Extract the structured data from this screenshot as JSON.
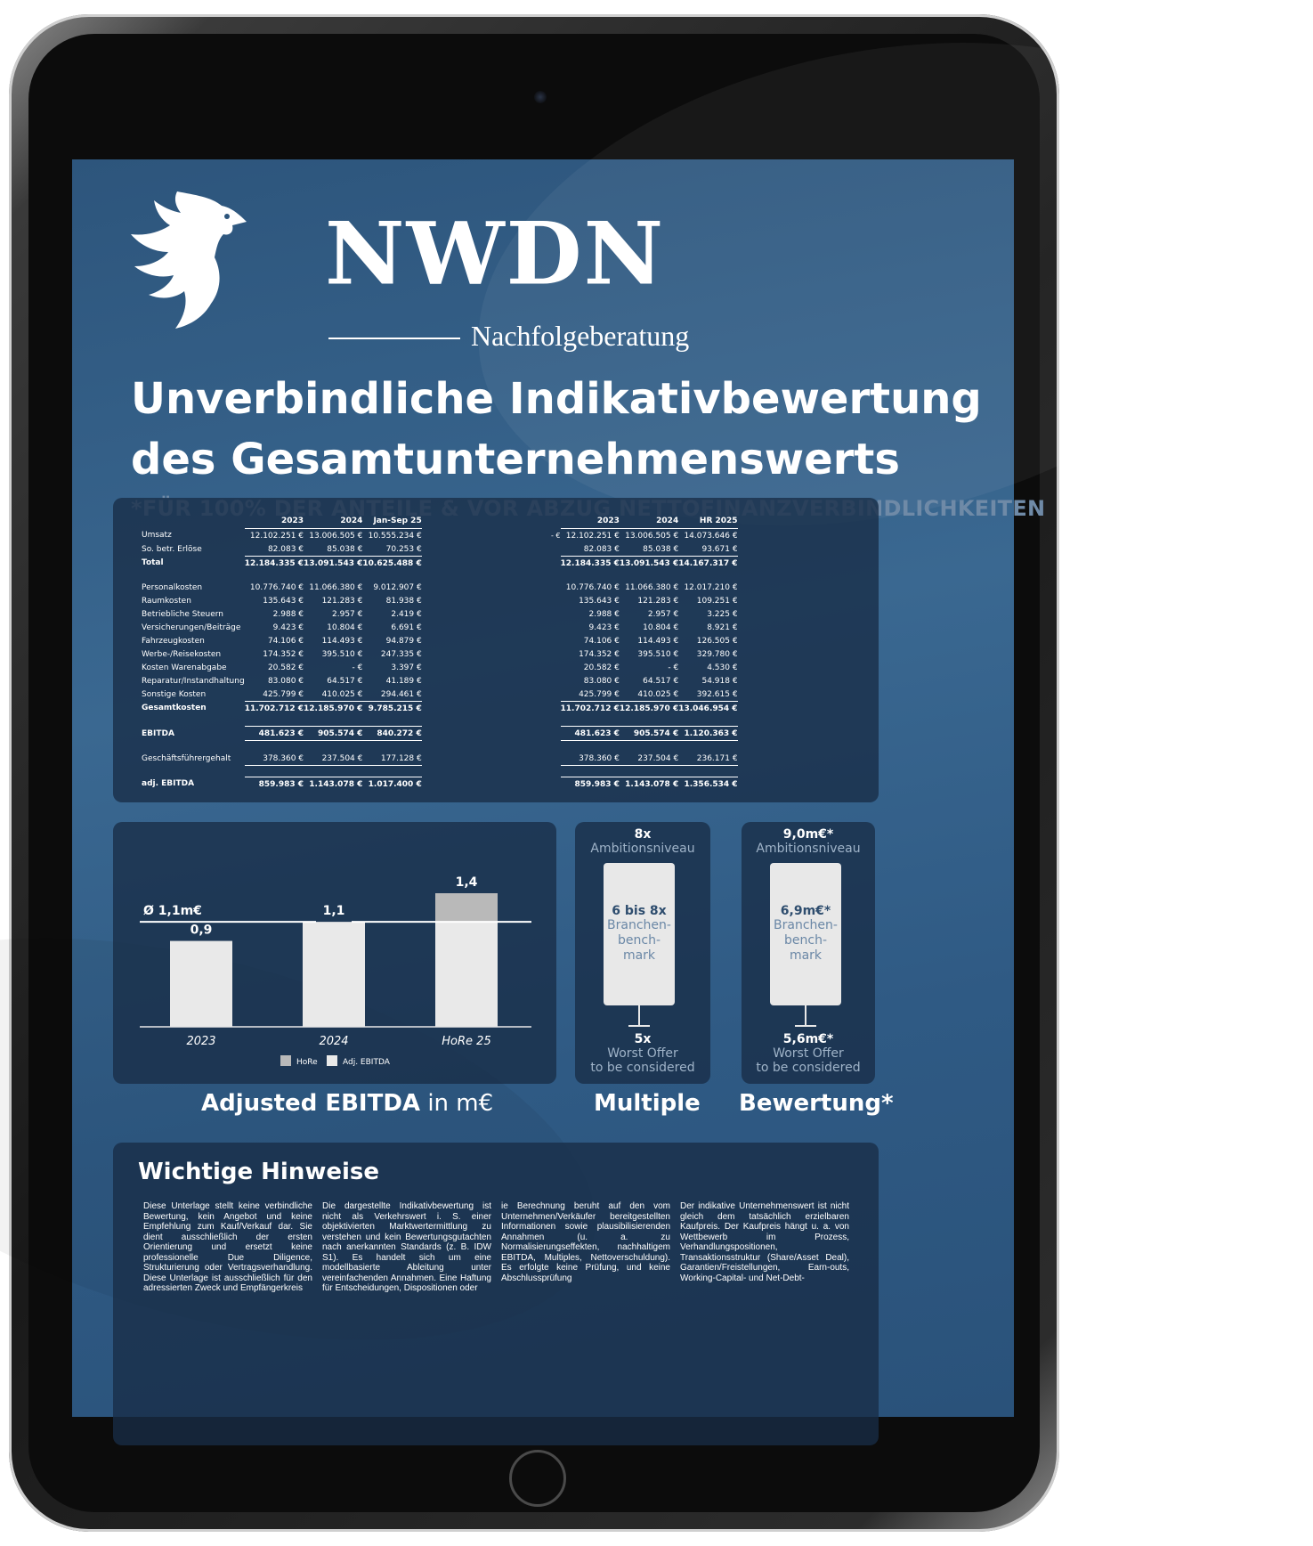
{
  "logo": {
    "brand": "NWDN",
    "sub": "Nachfolgeberatung"
  },
  "title": "Unverbindliche Indikativbewertung des Gesamtunternehmenswerts",
  "subtitle": "*FÜR 100% DER ANTEILE & VOR ABZUG NETTOFINANZVERBINDLICHKEITEN",
  "table_left": {
    "headers": [
      "2023",
      "2024",
      "Jan-Sep 25"
    ],
    "rows": [
      {
        "label": "Umsatz",
        "v": [
          "12.102.251 €",
          "13.006.505 €",
          "10.555.234 €"
        ]
      },
      {
        "label": "So. betr. Erlöse",
        "v": [
          "82.083 €",
          "85.038 €",
          "70.253 €"
        ]
      },
      {
        "label": "Total",
        "v": [
          "12.184.335 €",
          "13.091.543 €",
          "10.625.488 €"
        ]
      },
      {
        "label": "Personalkosten",
        "v": [
          "10.776.740 €",
          "11.066.380 €",
          "9.012.907 €"
        ]
      },
      {
        "label": "Raumkosten",
        "v": [
          "135.643 €",
          "121.283 €",
          "81.938 €"
        ]
      },
      {
        "label": "Betriebliche Steuern",
        "v": [
          "2.988 €",
          "2.957 €",
          "2.419 €"
        ]
      },
      {
        "label": "Versicherungen/Beiträge",
        "v": [
          "9.423 €",
          "10.804 €",
          "6.691 €"
        ]
      },
      {
        "label": "Fahrzeugkosten",
        "v": [
          "74.106 €",
          "114.493 €",
          "94.879 €"
        ]
      },
      {
        "label": "Werbe-/Reisekosten",
        "v": [
          "174.352 €",
          "395.510 €",
          "247.335 €"
        ]
      },
      {
        "label": "Kosten Warenabgabe",
        "v": [
          "20.582 €",
          "-   €",
          "3.397 €"
        ]
      },
      {
        "label": "Reparatur/Instandhaltung",
        "v": [
          "83.080 €",
          "64.517 €",
          "41.189 €"
        ]
      },
      {
        "label": "Sonstige Kosten",
        "v": [
          "425.799 €",
          "410.025 €",
          "294.461 €"
        ]
      },
      {
        "label": "Gesamtkosten",
        "v": [
          "11.702.712 €",
          "12.185.970 €",
          "9.785.215 €"
        ]
      },
      {
        "label": "EBITDA",
        "v": [
          "481.623 €",
          "905.574 €",
          "840.272 €"
        ]
      },
      {
        "label": "Geschäftsführergehalt",
        "v": [
          "378.360 €",
          "237.504 €",
          "177.128 €"
        ]
      },
      {
        "label": "adj. EBITDA",
        "v": [
          "859.983 €",
          "1.143.078 €",
          "1.017.400 €"
        ]
      }
    ]
  },
  "table_right": {
    "headers": [
      "2023",
      "2024",
      "HR 2025"
    ],
    "extra": "-   €",
    "rows": [
      [
        "12.102.251 €",
        "13.006.505 €",
        "14.073.646 €"
      ],
      [
        "82.083 €",
        "85.038 €",
        "93.671 €"
      ],
      [
        "12.184.335 €",
        "13.091.543 €",
        "14.167.317 €"
      ],
      [
        "10.776.740 €",
        "11.066.380 €",
        "12.017.210 €"
      ],
      [
        "135.643 €",
        "121.283 €",
        "109.251 €"
      ],
      [
        "2.988 €",
        "2.957 €",
        "3.225 €"
      ],
      [
        "9.423 €",
        "10.804 €",
        "8.921 €"
      ],
      [
        "74.106 €",
        "114.493 €",
        "126.505 €"
      ],
      [
        "174.352 €",
        "395.510 €",
        "329.780 €"
      ],
      [
        "20.582 €",
        "-   €",
        "4.530 €"
      ],
      [
        "83.080 €",
        "64.517 €",
        "54.918 €"
      ],
      [
        "425.799 €",
        "410.025 €",
        "392.615 €"
      ],
      [
        "11.702.712 €",
        "12.185.970 €",
        "13.046.954 €"
      ],
      [
        "481.623 €",
        "905.574 €",
        "1.120.363 €"
      ],
      [
        "378.360 €",
        "237.504 €",
        "236.171 €"
      ],
      [
        "859.983 €",
        "1.143.078 €",
        "1.356.534 €"
      ]
    ]
  },
  "ebitda_chart": {
    "caption_bold": "Adjusted EBITDA",
    "caption_light": " in m€",
    "avg_label": "Ø 1,1m€",
    "avg_value": 1.1,
    "categories": [
      "2023",
      "2024",
      "HoRe 25"
    ],
    "adj_values": [
      0.9,
      1.1,
      1.4
    ],
    "bar_labels": [
      "0,9",
      "1,1",
      "1,4"
    ],
    "hore_value": 1.4,
    "adj_base_hore": 1.1,
    "legend": [
      "HoRe",
      "Adj. EBITDA"
    ],
    "colors": {
      "adj": "#e9e9e9",
      "hore": "#b9b9b9"
    }
  },
  "multiple": {
    "caption": "Multiple",
    "top_value": "8x",
    "top_label": "Ambitionsniveau",
    "mid_value": "6 bis 8x",
    "mid_label_lines": [
      "Branchen-",
      "bench-",
      "mark"
    ],
    "bottom_value": "5x",
    "bottom_label_lines": [
      "Worst Offer",
      "to be considered"
    ]
  },
  "valuation": {
    "caption": "Bewertung*",
    "top_value": "9,0m€*",
    "top_label": "Ambitionsniveau",
    "mid_value": "6,9m€*",
    "mid_label_lines": [
      "Branchen-",
      "bench-",
      "mark"
    ],
    "bottom_value": "5,6m€*",
    "bottom_label_lines": [
      "Worst Offer",
      "to be considered"
    ]
  },
  "notes": {
    "title": "Wichtige Hinweise",
    "cols": [
      "Diese Unterlage stellt keine verbindliche Bewertung, kein Angebot und keine Empfehlung zum Kauf/Verkauf dar. Sie dient ausschließlich der ersten Orientierung und ersetzt keine professionelle Due Diligence, Strukturierung oder Vertragsverhandlung. Diese Unterlage ist ausschließlich für den adressierten Zweck und Empfängerkreis",
      "Die dargestellte Indikativbewertung ist nicht als Verkehrswert i. S. einer objektivierten Marktwertermittlung zu verstehen und kein Bewertungsgutachten nach anerkannten Standards (z. B. IDW S1). Es handelt sich um eine modellbasierte Ableitung unter vereinfachenden Annahmen. Eine Haftung für Entscheidungen, Dispositionen oder",
      "ie Berechnung beruht auf den vom Unternehmen/Verkäufer bereitgestellten Informationen sowie plausibilisierenden Annahmen (u. a. zu Normalisierungseffekten, nachhaltigem EBITDA, Multiples, Nettoverschuldung). Es erfolgte keine Prüfung, und keine Abschlussprüfung",
      "Der indikative Unternehmenswert ist nicht gleich dem tatsächlich erzielbaren Kaufpreis. Der Kaufpreis hängt u. a. von Wettbewerb im Prozess, Verhandlungspositionen, Transaktionsstruktur (Share/Asset Deal), Garantien/Freistellungen, Earn-outs, Working-Capital- und Net-Debt-"
    ]
  }
}
